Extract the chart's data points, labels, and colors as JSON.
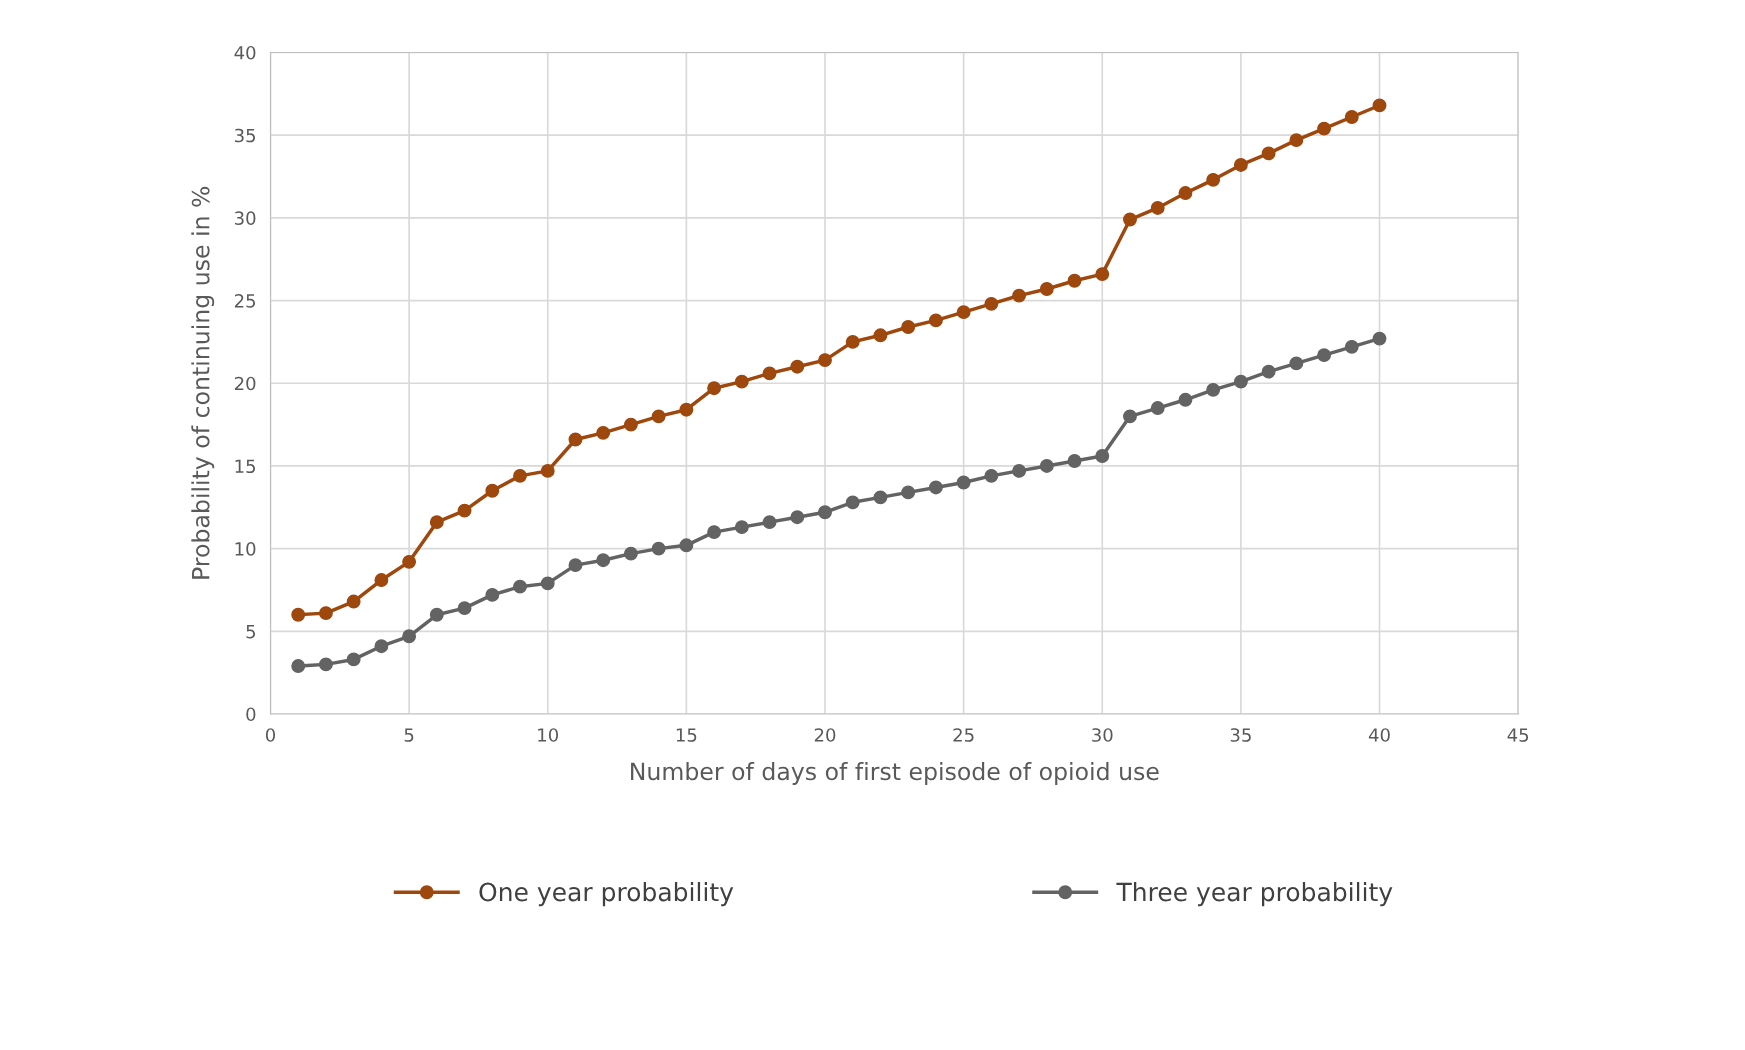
{
  "chart_data": {
    "type": "line",
    "xlabel": "Number of days of first episode of opioid use",
    "ylabel": "Probability of continuing use in %",
    "x": [
      1,
      2,
      3,
      4,
      5,
      6,
      7,
      8,
      9,
      10,
      11,
      12,
      13,
      14,
      15,
      16,
      17,
      18,
      19,
      20,
      21,
      22,
      23,
      24,
      25,
      26,
      27,
      28,
      29,
      30,
      31,
      32,
      33,
      34,
      35,
      36,
      37,
      38,
      39,
      40
    ],
    "series": [
      {
        "name": "One year probability",
        "color": "#9e480e",
        "values": [
          6.0,
          6.1,
          6.8,
          8.1,
          9.2,
          11.6,
          12.3,
          13.5,
          14.4,
          14.7,
          16.6,
          17.0,
          17.5,
          18.0,
          18.4,
          19.7,
          20.1,
          20.6,
          21.0,
          21.4,
          22.5,
          22.9,
          23.4,
          23.8,
          24.3,
          24.8,
          25.3,
          25.7,
          26.2,
          26.6,
          29.9,
          30.6,
          31.5,
          32.3,
          33.2,
          33.9,
          34.7,
          35.4,
          36.1,
          36.8
        ]
      },
      {
        "name": "Three year probability",
        "color": "#636363",
        "values": [
          2.9,
          3.0,
          3.3,
          4.1,
          4.7,
          6.0,
          6.4,
          7.2,
          7.7,
          7.9,
          9.0,
          9.3,
          9.7,
          10.0,
          10.2,
          11.0,
          11.3,
          11.6,
          11.9,
          12.2,
          12.8,
          13.1,
          13.4,
          13.7,
          14.0,
          14.4,
          14.7,
          15.0,
          15.3,
          15.6,
          18.0,
          18.5,
          19.0,
          19.6,
          20.1,
          20.7,
          21.2,
          21.7,
          22.2,
          22.7
        ]
      }
    ],
    "xlim": [
      0,
      45
    ],
    "xticks": [
      0,
      5,
      10,
      15,
      20,
      25,
      30,
      35,
      40,
      45
    ],
    "ylim": [
      0,
      40
    ],
    "yticks": [
      0,
      5,
      10,
      15,
      20,
      25,
      30,
      35,
      40
    ],
    "grid": true,
    "legend": "bottom",
    "marker": "circle",
    "line_style": "solid"
  }
}
